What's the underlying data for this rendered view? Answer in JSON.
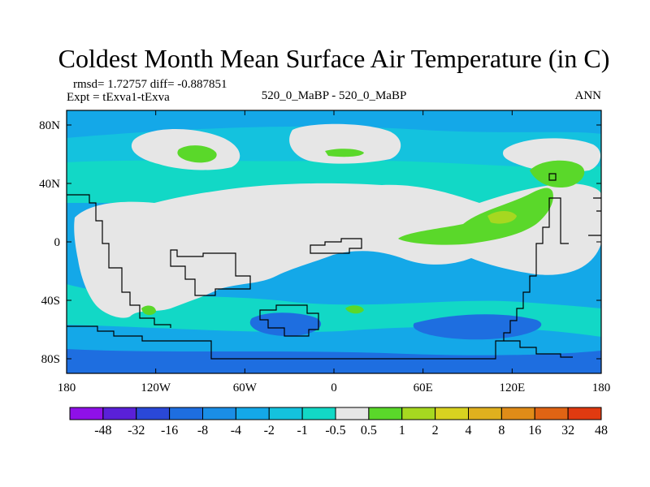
{
  "title": "Coldest Month Mean Surface Air Temperature (in C)",
  "stats": "rmsd= 1.72757 diff= -0.887851",
  "expt": "Expt = tExva1-tExva",
  "case": "520_0_MaBP - 520_0_MaBP",
  "period": "ANN",
  "lat_labels": [
    "80N",
    "40N",
    "0",
    "40S",
    "80S"
  ],
  "lon_labels": [
    "180",
    "120W",
    "60W",
    "0",
    "60E",
    "120E",
    "180"
  ],
  "colorbar": {
    "labels": [
      "-48",
      "-32",
      "-16",
      "-8",
      "-4",
      "-2",
      "-1",
      "-0.5",
      "0.5",
      "1",
      "2",
      "4",
      "8",
      "16",
      "32",
      "48"
    ],
    "colors": [
      "#8f10e8",
      "#5a20d8",
      "#2a48d8",
      "#1e6ee0",
      "#1a8ee6",
      "#14a8e8",
      "#14c2de",
      "#12d8c6",
      "#e6e6e6",
      "#5ad82a",
      "#a6d820",
      "#d8d220",
      "#e0b01e",
      "#e08c18",
      "#e06414",
      "#e03a10"
    ]
  },
  "palette": {
    "ocean": "#14a8e8",
    "mid": "#14c2de",
    "teal": "#12d8c6",
    "neutral": "#e6e6e6",
    "deep": "#1e6ee0",
    "green": "#5ad82a",
    "lime": "#a6d820"
  }
}
